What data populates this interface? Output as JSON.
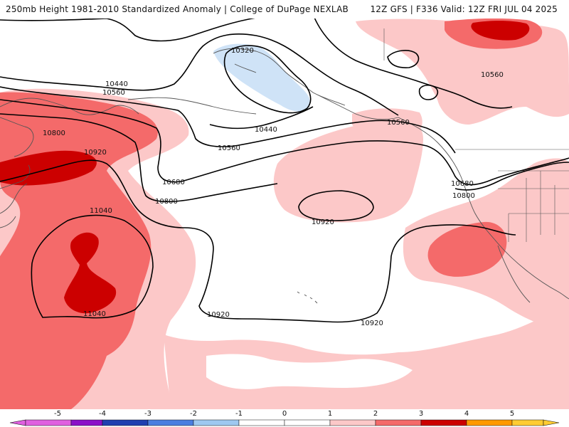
{
  "header": {
    "title_left": "250mb Height 1981-2010 Standardized Anomaly | College of DuPage NEXLAB",
    "title_right": "12Z GFS | F336 Valid: 12Z FRI JUL 04 2025"
  },
  "contours": [
    {
      "id": "c1",
      "label": "10320"
    },
    {
      "id": "c2",
      "label": "10440"
    },
    {
      "id": "c3",
      "label": "10440"
    },
    {
      "id": "c4",
      "label": "10560"
    },
    {
      "id": "c5",
      "label": "10560"
    },
    {
      "id": "c6",
      "label": "10560"
    },
    {
      "id": "c7",
      "label": "10560"
    },
    {
      "id": "c8",
      "label": "10680"
    },
    {
      "id": "c9",
      "label": "10680"
    },
    {
      "id": "c10",
      "label": "10800"
    },
    {
      "id": "c11",
      "label": "10800"
    },
    {
      "id": "c12",
      "label": "10800"
    },
    {
      "id": "c13",
      "label": "10920"
    },
    {
      "id": "c14",
      "label": "10920"
    },
    {
      "id": "c15",
      "label": "10920"
    },
    {
      "id": "c16",
      "label": "10920"
    },
    {
      "id": "c17",
      "label": "11040"
    },
    {
      "id": "c18",
      "label": "11040"
    }
  ],
  "colorbar": {
    "labels": [
      "-5",
      "-4",
      "-3",
      "-2",
      "-1",
      "0",
      "1",
      "2",
      "3",
      "4",
      "5"
    ],
    "colors": [
      "#e060e0",
      "#8a10c8",
      "#1f3fb0",
      "#4a7ee0",
      "#9ec8f0",
      "#d8ebfa",
      "#ffffff",
      "#ffffff",
      "#fcc8c8",
      "#f47070",
      "#d00000",
      "#ff9900",
      "#ffcc33"
    ],
    "bins": [
      {
        "color": "#e060e0"
      },
      {
        "color": "#8a10c8"
      },
      {
        "color": "#1f3fb0"
      },
      {
        "color": "#4a7ee0"
      },
      {
        "color": "#9ec8f0"
      },
      {
        "color": "#d8ebfa"
      },
      {
        "color": "#ffffff"
      },
      {
        "color": "#ffd0d0"
      },
      {
        "color": "#f47070"
      },
      {
        "color": "#d00000"
      },
      {
        "color": "#ff9900"
      },
      {
        "color": "#ffcc33"
      }
    ]
  },
  "palette": {
    "anom_pos1": "#fcc8c8",
    "anom_pos2": "#f46a6a",
    "anom_pos3": "#cc0000",
    "anom_neg1": "#cfe3f7",
    "coast": "#555555",
    "contour": "#000000"
  }
}
